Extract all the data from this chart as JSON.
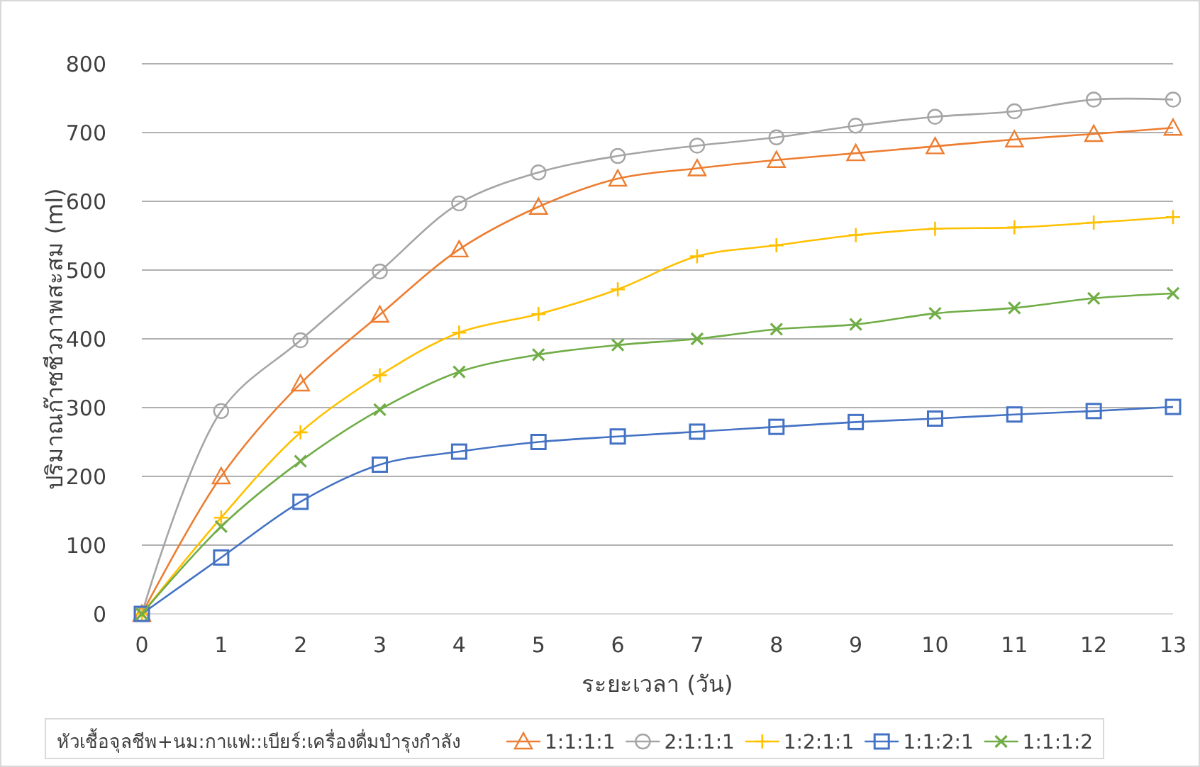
{
  "chart_data": {
    "type": "line",
    "xlabel": "ระยะเวลา (วัน)",
    "ylabel": "ปริมาณก๊าซชีวภาพสะสม (ml)",
    "legend_title": "หัวเชื้อจุลชีพ+นม:กาแฟ::เบียร์:เครื่องดื่มบำรุงกำลัง",
    "x": [
      0,
      1,
      2,
      3,
      4,
      5,
      6,
      7,
      8,
      9,
      10,
      11,
      12,
      13
    ],
    "xlim": [
      0,
      13
    ],
    "xticks": [
      0,
      1,
      2,
      3,
      4,
      5,
      6,
      7,
      8,
      9,
      10,
      11,
      12,
      13
    ],
    "ylim": [
      0,
      800
    ],
    "yticks": [
      0,
      100,
      200,
      300,
      400,
      500,
      600,
      700,
      800
    ],
    "grid": "y",
    "legend": "bottom",
    "series": [
      {
        "name": "1:1:1:1",
        "color": "#ed7d31",
        "marker": "triangle",
        "values": [
          0,
          200,
          335,
          435,
          530,
          592,
          633,
          648,
          660,
          670,
          680,
          690,
          698,
          707
        ]
      },
      {
        "name": "2:1:1:1",
        "color": "#a5a5a5",
        "marker": "circle",
        "values": [
          0,
          295,
          398,
          498,
          597,
          642,
          666,
          681,
          693,
          710,
          723,
          731,
          748,
          748
        ]
      },
      {
        "name": "1:2:1:1",
        "color": "#ffc000",
        "marker": "plus",
        "values": [
          0,
          140,
          264,
          347,
          409,
          436,
          472,
          520,
          536,
          551,
          560,
          562,
          569,
          577
        ]
      },
      {
        "name": "1:1:2:1",
        "color": "#4472c4",
        "marker": "square",
        "values": [
          0,
          82,
          163,
          217,
          236,
          250,
          258,
          265,
          272,
          279,
          284,
          290,
          295,
          301
        ]
      },
      {
        "name": "1:1:1:2",
        "color": "#70ad47",
        "marker": "cross",
        "values": [
          0,
          127,
          222,
          297,
          352,
          377,
          391,
          400,
          414,
          421,
          437,
          445,
          459,
          466
        ]
      }
    ]
  }
}
